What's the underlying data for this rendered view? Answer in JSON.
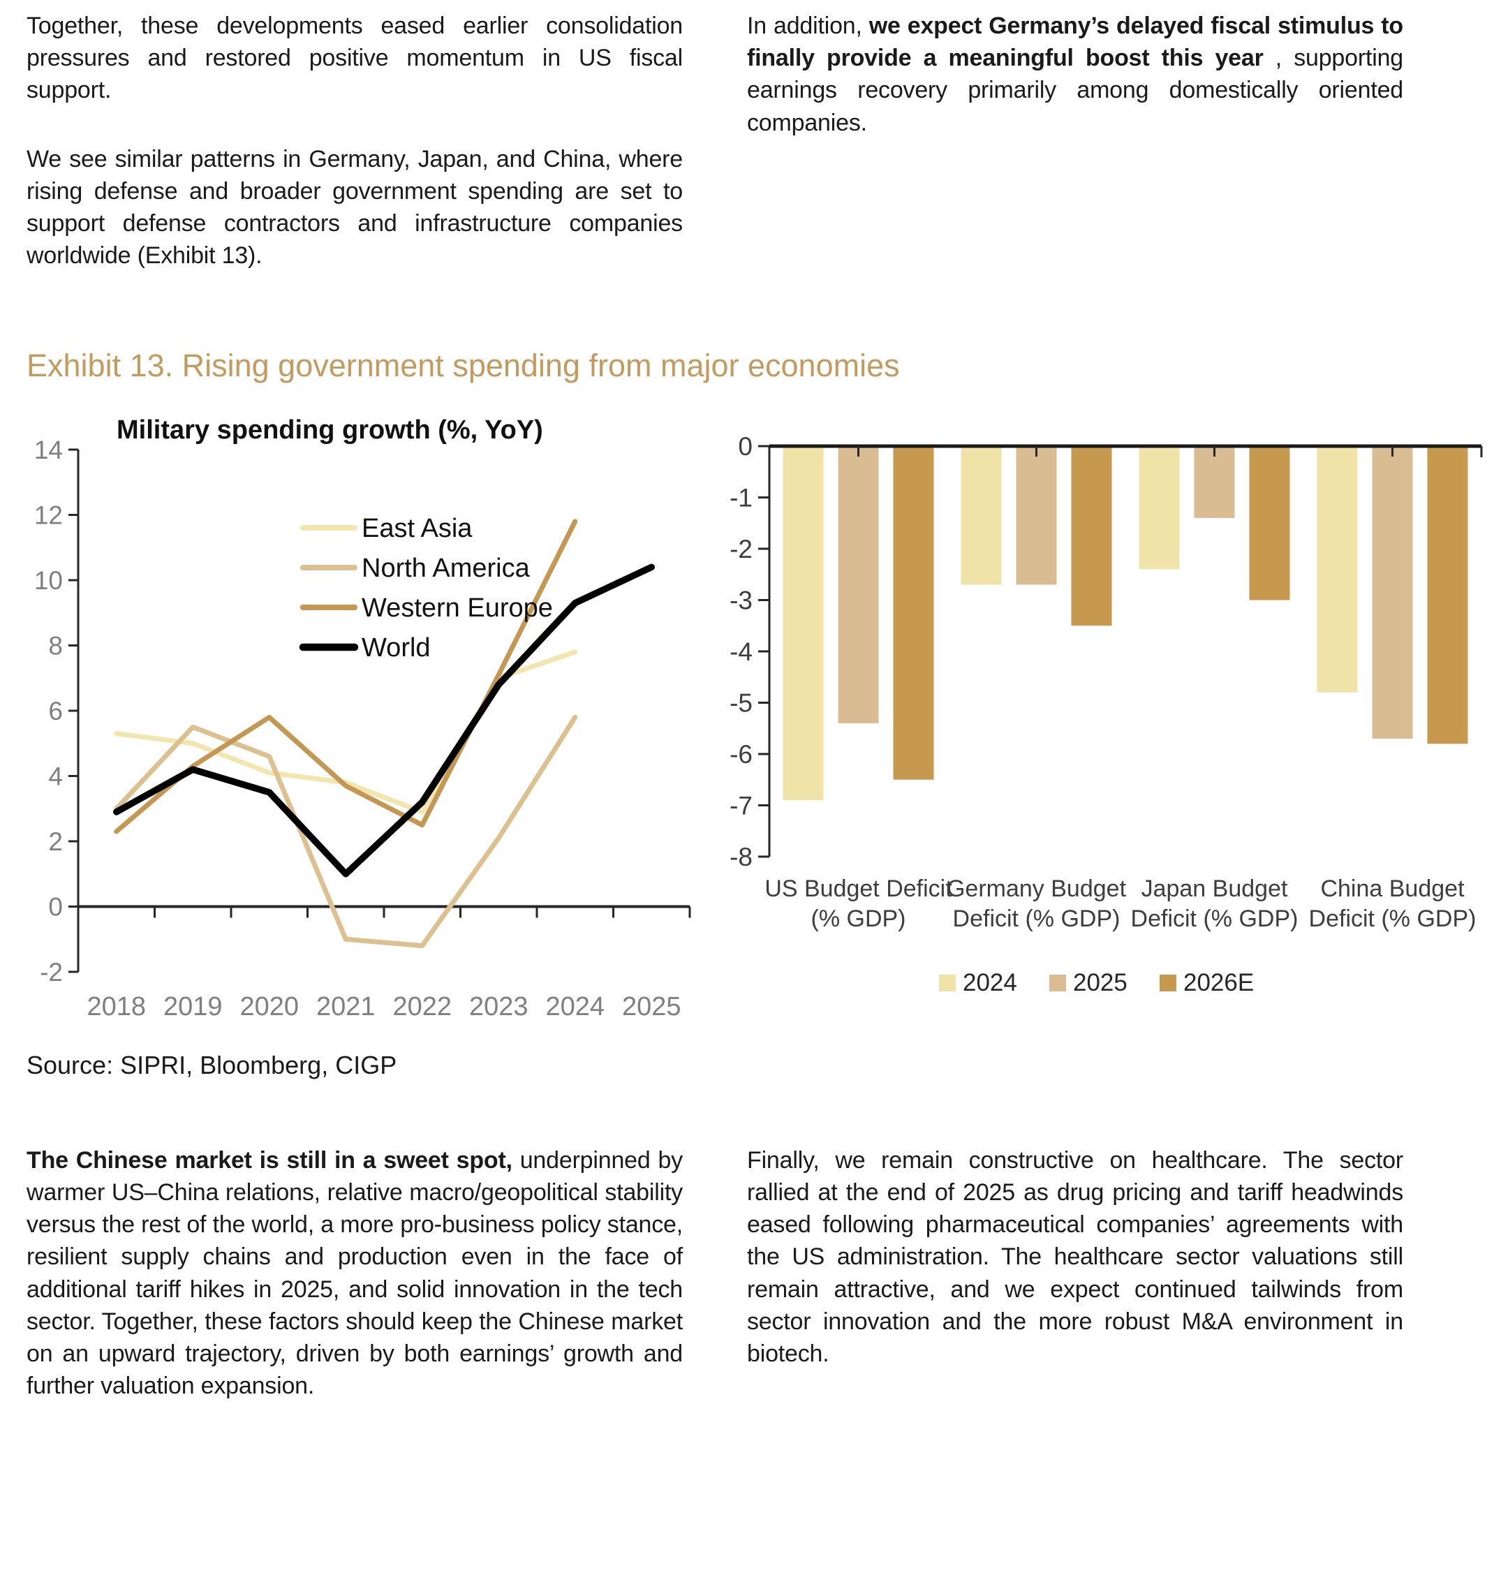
{
  "colors": {
    "exhibit_title": "#C49A5E",
    "axis_gray": "#7f7f7f",
    "axis_dark": "#3d3d3d",
    "axis_line": "#262626",
    "text": "#1a1a1a"
  },
  "paragraphs": {
    "top_left": [
      {
        "segments": [
          {
            "text": "Together, these developments eased earlier consolidation pressures and restored positive momentum in US fiscal support.",
            "bold": false
          }
        ]
      },
      {
        "segments": [
          {
            "text": "We see similar patterns in Germany, Japan, and China, where rising defense and broader government spending are set to support defense contractors and infrastructure companies worldwide (Exhibit 13).",
            "bold": false
          }
        ]
      }
    ],
    "top_right": [
      {
        "segments": [
          {
            "text": "In addition, ",
            "bold": false
          },
          {
            "text": "we expect Germany’s delayed fiscal stimulus to finally provide a meaningful boost this year",
            "bold": true
          },
          {
            "text": " , supporting earnings recovery primarily among domestically oriented companies.",
            "bold": false
          }
        ]
      }
    ],
    "bottom_left": [
      {
        "segments": [
          {
            "text": "The Chinese market is still in a sweet spot,",
            "bold": true
          },
          {
            "text": " underpinned by warmer US–China relations, relative macro/geopolitical stability versus the rest of the world, a more pro-business policy stance, resilient supply chains and production even in the face of additional tariff hikes in 2025, and solid innovation in the tech sector. Together, these factors should keep the Chinese market on an upward trajectory, driven by both earnings’ growth and further valuation expansion.",
            "bold": false
          }
        ]
      }
    ],
    "bottom_right": [
      {
        "segments": [
          {
            "text": "Finally, we remain constructive on healthcare. The sector rallied at the end of 2025 as drug pricing and tariff headwinds eased following pharmaceutical companies’ agreements with the US administration. The healthcare sector valuations still remain attractive, and we expect continued tailwinds from sector innovation and the more robust M&A environment in biotech.",
            "bold": false
          }
        ]
      }
    ]
  },
  "exhibit": {
    "title": "Exhibit 13. Rising government spending from major economies",
    "source": "Source: SIPRI, Bloomberg, CIGP"
  },
  "chart_data": [
    {
      "type": "line",
      "title": "Military spending growth (%, YoY)",
      "x": [
        "2018",
        "2019",
        "2020",
        "2021",
        "2022",
        "2023",
        "2024",
        "2025"
      ],
      "ylim": [
        -2,
        14
      ],
      "ytick_step": 2,
      "grid": false,
      "legend_position": "inside-top-left",
      "series": [
        {
          "name": "East Asia",
          "color": "#F2E6AE",
          "width": 7,
          "values": [
            5.3,
            5.0,
            4.1,
            3.8,
            2.9,
            7.0,
            7.8,
            null
          ]
        },
        {
          "name": "North America",
          "color": "#DCC08F",
          "width": 7,
          "values": [
            3.0,
            5.5,
            4.6,
            -1.0,
            -1.2,
            2.1,
            5.8,
            null
          ]
        },
        {
          "name": "Western Europe",
          "color": "#C49752",
          "width": 7,
          "values": [
            2.3,
            4.3,
            5.8,
            3.7,
            2.5,
            7.1,
            11.8,
            null
          ]
        },
        {
          "name": "World",
          "color": "#000000",
          "width": 9.5,
          "values": [
            2.9,
            4.2,
            3.5,
            1.0,
            3.2,
            6.8,
            9.3,
            10.4
          ]
        }
      ]
    },
    {
      "type": "bar",
      "categories": [
        "US Budget Deficit\n(% GDP)",
        "Germany Budget\nDeficit (% GDP)",
        "Japan Budget\nDeficit (% GDP)",
        "China Budget\nDeficit (% GDP)"
      ],
      "ylim": [
        -8,
        0
      ],
      "ytick_step": 1,
      "grid": false,
      "legend_position": "bottom",
      "series": [
        {
          "name": "2024",
          "color": "#F0E3A8",
          "values": [
            -6.9,
            -2.7,
            -2.4,
            -4.8
          ]
        },
        {
          "name": "2025",
          "color": "#D9BC92",
          "values": [
            -5.4,
            -2.7,
            -1.4,
            -5.7
          ]
        },
        {
          "name": "2026E",
          "color": "#C6994E",
          "values": [
            -6.5,
            -3.5,
            -3.0,
            -5.8
          ]
        }
      ]
    }
  ]
}
